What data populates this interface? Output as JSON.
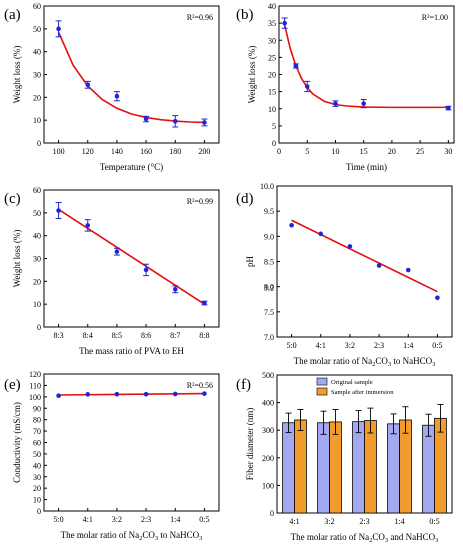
{
  "chart_data": [
    {
      "id": "a",
      "panel_label": "(a)",
      "type": "scatter",
      "xlabel": "Temperature (°C)",
      "ylabel": "Weight loss (%)",
      "xlim": [
        90,
        210
      ],
      "ylim": [
        0,
        60
      ],
      "xticks": [
        100,
        120,
        140,
        160,
        180,
        200
      ],
      "yticks": [
        0,
        10,
        20,
        30,
        40,
        50,
        60
      ],
      "annotation": "R²=0.96",
      "points": [
        {
          "x": 100,
          "y": 50.0,
          "err": 3.5
        },
        {
          "x": 120,
          "y": 25.5,
          "err": 1.5
        },
        {
          "x": 140,
          "y": 20.5,
          "err": 2.0
        },
        {
          "x": 160,
          "y": 10.5,
          "err": 1.2
        },
        {
          "x": 180,
          "y": 9.5,
          "err": 2.5
        },
        {
          "x": 200,
          "y": 9.0,
          "err": 1.5
        }
      ],
      "fit": [
        {
          "x": 100,
          "y": 48.5
        },
        {
          "x": 110,
          "y": 34.0
        },
        {
          "x": 120,
          "y": 25.0
        },
        {
          "x": 130,
          "y": 19.0
        },
        {
          "x": 140,
          "y": 15.2
        },
        {
          "x": 150,
          "y": 12.7
        },
        {
          "x": 160,
          "y": 11.2
        },
        {
          "x": 170,
          "y": 10.2
        },
        {
          "x": 180,
          "y": 9.6
        },
        {
          "x": 190,
          "y": 9.2
        },
        {
          "x": 200,
          "y": 9.0
        }
      ]
    },
    {
      "id": "b",
      "panel_label": "(b)",
      "type": "scatter",
      "xlabel": "Time (min)",
      "ylabel": "Weight loss (%)",
      "xlim": [
        0,
        31
      ],
      "ylim": [
        0,
        40
      ],
      "xticks": [
        0,
        5,
        10,
        15,
        20,
        25,
        30
      ],
      "yticks": [
        0,
        5,
        10,
        15,
        20,
        25,
        30,
        35,
        40
      ],
      "annotation": "R²=1.00",
      "points": [
        {
          "x": 1,
          "y": 35.0,
          "err": 1.5
        },
        {
          "x": 3,
          "y": 22.5,
          "err": 0.6
        },
        {
          "x": 5,
          "y": 16.5,
          "err": 1.5
        },
        {
          "x": 10,
          "y": 11.5,
          "err": 0.8
        },
        {
          "x": 15,
          "y": 11.5,
          "err": 1.2
        },
        {
          "x": 30,
          "y": 10.2,
          "err": 0.5
        }
      ],
      "fit": [
        {
          "x": 1,
          "y": 34.5
        },
        {
          "x": 2,
          "y": 27.5
        },
        {
          "x": 3,
          "y": 22.5
        },
        {
          "x": 4,
          "y": 18.8
        },
        {
          "x": 5,
          "y": 16.2
        },
        {
          "x": 6,
          "y": 14.3
        },
        {
          "x": 8,
          "y": 12.2
        },
        {
          "x": 10,
          "y": 11.2
        },
        {
          "x": 12,
          "y": 10.8
        },
        {
          "x": 15,
          "y": 10.5
        },
        {
          "x": 20,
          "y": 10.4
        },
        {
          "x": 25,
          "y": 10.4
        },
        {
          "x": 30,
          "y": 10.4
        }
      ]
    },
    {
      "id": "c",
      "panel_label": "(c)",
      "type": "scatter",
      "xlabel": "The mass ratio of PVA to EH",
      "ylabel": "Weight loss (%)",
      "categories": [
        "8:3",
        "8:4",
        "8:5",
        "8:6",
        "8:7",
        "8:8"
      ],
      "ylim": [
        0,
        60
      ],
      "yticks": [
        0,
        10,
        20,
        30,
        40,
        50,
        60
      ],
      "annotation": "R²=0.99",
      "points": [
        {
          "i": 0,
          "y": 51.0,
          "err": 3.5
        },
        {
          "i": 1,
          "y": 44.5,
          "err": 2.5
        },
        {
          "i": 2,
          "y": 33.0,
          "err": 1.5
        },
        {
          "i": 3,
          "y": 25.0,
          "err": 2.5
        },
        {
          "i": 4,
          "y": 16.5,
          "err": 1.5
        },
        {
          "i": 5,
          "y": 10.5,
          "err": 0.8
        }
      ],
      "fit": [
        {
          "i": 0,
          "y": 51.5
        },
        {
          "i": 5,
          "y": 10.0
        }
      ]
    },
    {
      "id": "d",
      "panel_label": "(d)",
      "type": "scatter",
      "xlabel": {
        "pre": "The molar ratio of Na",
        "s1": "2",
        "mid": "CO",
        "s2": "3",
        "post": " to NaHCO",
        "s3": "3"
      },
      "ylabel": "pH",
      "categories": [
        "5:0",
        "4:1",
        "3:2",
        "2:3",
        "1:4",
        "0:5"
      ],
      "ylim": [
        7.0,
        10.0
      ],
      "yticks": [
        "7.0",
        "7.5",
        "8.0",
        "8.5",
        "9.0",
        "9.5",
        "10.0"
      ],
      "extra_ytick": "3:2",
      "points": [
        {
          "i": 0,
          "y": 9.22
        },
        {
          "i": 1,
          "y": 9.05
        },
        {
          "i": 2,
          "y": 8.8
        },
        {
          "i": 3,
          "y": 8.42
        },
        {
          "i": 4,
          "y": 8.33
        },
        {
          "i": 5,
          "y": 7.78
        }
      ],
      "fit": [
        {
          "i": 0,
          "y": 9.32
        },
        {
          "i": 5,
          "y": 7.9
        }
      ]
    },
    {
      "id": "e",
      "panel_label": "(e)",
      "type": "scatter",
      "xlabel": {
        "pre": "The molar ratio of Na",
        "s1": "2",
        "mid": "CO",
        "s2": "3",
        "post": " to NaHCO",
        "s3": "3"
      },
      "ylabel": "Conductivity (mS/cm)",
      "categories": [
        "5:0",
        "4:1",
        "3:2",
        "2:3",
        "1:4",
        "0:5"
      ],
      "ylim": [
        0,
        120
      ],
      "yticks": [
        0,
        10,
        20,
        30,
        40,
        50,
        60,
        70,
        80,
        90,
        100,
        110,
        120
      ],
      "annotation": "R²=0.56",
      "points": [
        {
          "i": 0,
          "y": 101.0
        },
        {
          "i": 1,
          "y": 102.2
        },
        {
          "i": 2,
          "y": 102.3
        },
        {
          "i": 3,
          "y": 102.3
        },
        {
          "i": 4,
          "y": 102.5
        },
        {
          "i": 5,
          "y": 102.8
        }
      ],
      "fit": [
        {
          "i": 0,
          "y": 101.6
        },
        {
          "i": 5,
          "y": 102.9
        }
      ]
    },
    {
      "id": "f",
      "panel_label": "(f)",
      "type": "bar",
      "xlabel": {
        "pre": "The molar ratio of Na",
        "s1": "2",
        "mid": "CO",
        "s2": "3",
        "post": " and NaHCO",
        "s3": "3"
      },
      "ylabel": "Fiber diameter (nm)",
      "categories": [
        "4:1",
        "3:2",
        "2:3",
        "1:4",
        "0:5"
      ],
      "ylim": [
        0,
        500
      ],
      "yticks": [
        0,
        100,
        200,
        300,
        400,
        500
      ],
      "legend_position": "top-center",
      "series": [
        {
          "name": "Original sample",
          "color": "#a4a8f0",
          "values": [
            327,
            327,
            331,
            323,
            318
          ],
          "errors": [
            35,
            42,
            40,
            36,
            40
          ]
        },
        {
          "name": "Sample after immersion",
          "color": "#f39c2e",
          "values": [
            337,
            330,
            335,
            337,
            343
          ],
          "errors": [
            38,
            45,
            45,
            48,
            50
          ]
        }
      ]
    }
  ],
  "colors": {
    "point": "#1f25d6",
    "fit": "#e60f0f",
    "axis": "#000000"
  }
}
